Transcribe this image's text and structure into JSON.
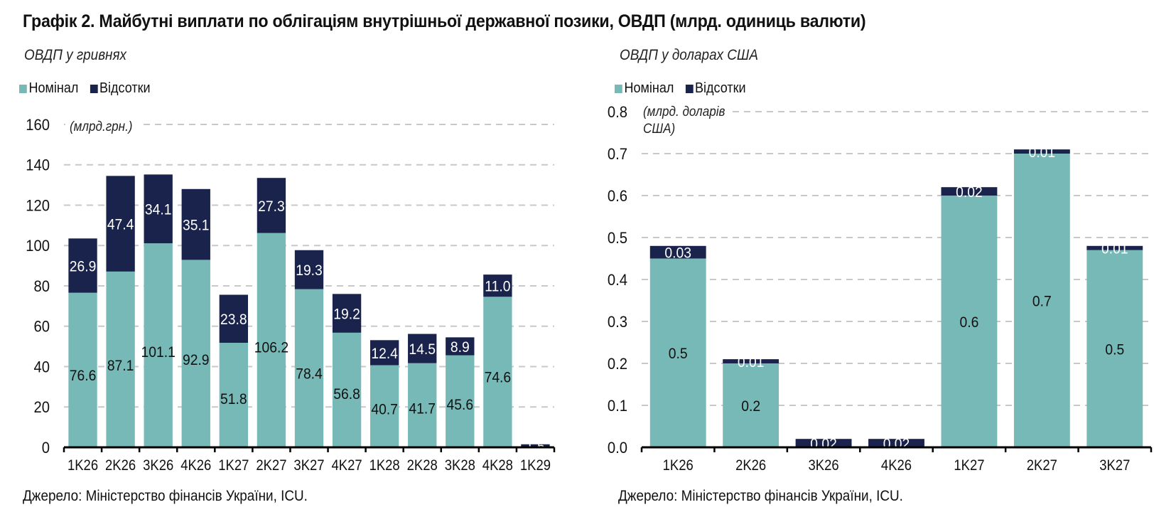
{
  "title": "Графік 2. Майбутні виплати по облігаціям внутрішньої державної позики, ОВДП (млрд. одиниць валюти)",
  "colors": {
    "nominal": "#76b9b7",
    "interest": "#19234b",
    "grid": "#c8c8c8",
    "axis": "#000000"
  },
  "chart_data": [
    {
      "type": "bar",
      "stacked": true,
      "title": "ОВДП у гривнях",
      "unit_label": "(млрд.грн.)",
      "legend": [
        "Номінал",
        "Відсотки"
      ],
      "legend_position": "top-left",
      "categories": [
        "1K26",
        "2K26",
        "3K26",
        "4K26",
        "1K27",
        "2K27",
        "3K27",
        "4K27",
        "1K28",
        "2K28",
        "3K28",
        "4K28",
        "1K29"
      ],
      "series": [
        {
          "name": "Номінал",
          "values": [
            76.6,
            87.1,
            101.1,
            92.9,
            51.8,
            106.2,
            78.4,
            56.8,
            40.7,
            41.7,
            45.6,
            74.6,
            0
          ]
        },
        {
          "name": "Відсотки",
          "values": [
            26.9,
            47.4,
            34.1,
            35.1,
            23.8,
            27.3,
            19.3,
            19.2,
            12.4,
            14.5,
            8.9,
            11.0,
            1.5
          ]
        }
      ],
      "data_labels": {
        "Номінал": [
          "76.6",
          "87.1",
          "101.1",
          "92.9",
          "51.8",
          "106.2",
          "78.4",
          "56.8",
          "40.7",
          "41.7",
          "45.6",
          "74.6",
          ""
        ],
        "Відсотки": [
          "26.9",
          "47.4",
          "34.1",
          "35.1",
          "23.8",
          "27.3",
          "19.3",
          "19.2",
          "12.4",
          "14.5",
          "8.9",
          "11.0",
          "1.5"
        ]
      },
      "ylim": [
        0,
        160
      ],
      "yticks": [
        0,
        20,
        40,
        60,
        80,
        100,
        120,
        140,
        160
      ],
      "ytick_labels": [
        "0",
        "20",
        "40",
        "60",
        "80",
        "100",
        "120",
        "140",
        "160"
      ],
      "grid": true,
      "source": "Джерело: Міністерство фінансів України, ICU."
    },
    {
      "type": "bar",
      "stacked": true,
      "title": "ОВДП у доларах США",
      "unit_label": [
        "(млрд. доларів",
        "США)"
      ],
      "legend": [
        "Номінал",
        "Відсотки"
      ],
      "legend_position": "top-left",
      "categories": [
        "1K26",
        "2K26",
        "3K26",
        "4K26",
        "1K27",
        "2K27",
        "3K27"
      ],
      "series": [
        {
          "name": "Номінал",
          "values": [
            0.45,
            0.2,
            0,
            0,
            0.6,
            0.7,
            0.47
          ]
        },
        {
          "name": "Відсотки",
          "values": [
            0.03,
            0.01,
            0.02,
            0.02,
            0.02,
            0.01,
            0.01
          ]
        }
      ],
      "data_labels": {
        "Номінал": [
          "0.5",
          "0.2",
          "",
          "",
          "0.6",
          "0.7",
          "0.5"
        ],
        "Відсотки": [
          "0.03",
          "0.01",
          "0.02",
          "0.02",
          "0.02",
          "0.01",
          "0.01"
        ]
      },
      "ylim": [
        0,
        0.8
      ],
      "yticks": [
        0,
        0.1,
        0.2,
        0.3,
        0.4,
        0.5,
        0.6,
        0.7,
        0.8
      ],
      "ytick_labels": [
        "0.0",
        "0.1",
        "0.2",
        "0.3",
        "0.4",
        "0.5",
        "0.6",
        "0.7",
        "0.8"
      ],
      "grid": true,
      "source": "Джерело: Міністерство фінансів України, ICU."
    }
  ]
}
